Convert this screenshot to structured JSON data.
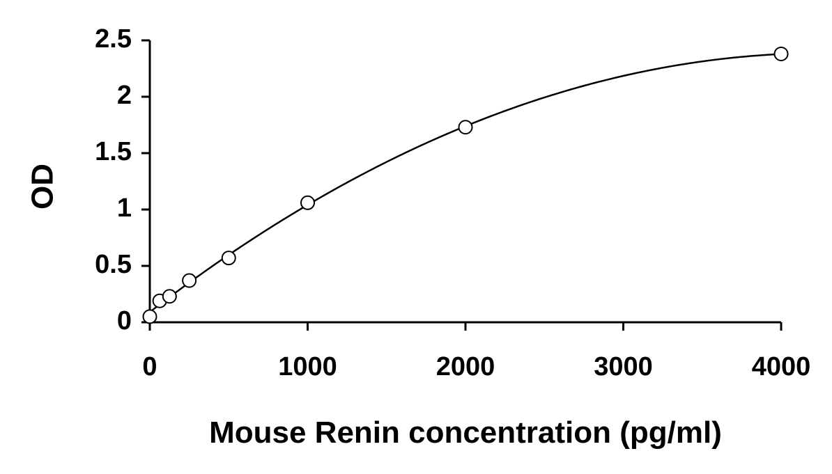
{
  "chart_data": {
    "type": "scatter",
    "title": "",
    "xlabel": "Mouse Renin concentration (pg/ml)",
    "ylabel": "OD",
    "xlim": [
      0,
      4000
    ],
    "ylim": [
      0,
      2.5
    ],
    "x_ticks": [
      0,
      1000,
      2000,
      3000,
      4000
    ],
    "x_tick_labels": [
      "0",
      "1000",
      "2000",
      "3000",
      "4000"
    ],
    "y_ticks": [
      0,
      0.5,
      1,
      1.5,
      2,
      2.5
    ],
    "y_tick_labels": [
      "0",
      "0.5",
      "1",
      "1.5",
      "2",
      "2.5"
    ],
    "grid": false,
    "legend": "none",
    "series": [
      {
        "x": [
          0,
          62.5,
          125,
          250,
          500,
          1000,
          2000,
          4000
        ],
        "y": [
          0.05,
          0.19,
          0.23,
          0.37,
          0.57,
          1.06,
          1.73,
          2.38
        ],
        "marker": "open-circle",
        "fit": "smooth-curve",
        "color": "#000000"
      }
    ]
  }
}
